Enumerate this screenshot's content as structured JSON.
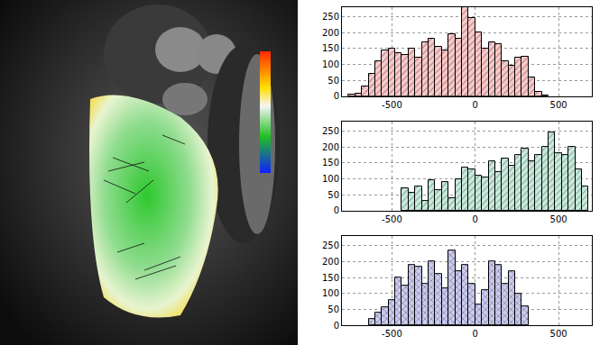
{
  "chart_data": [
    {
      "type": "histogram",
      "color": "#f3cccc",
      "grid": true,
      "bins": [
        -760,
        -720,
        -680,
        -640,
        -600,
        -560,
        -520,
        -480,
        -440,
        -400,
        -360,
        -320,
        -280,
        -240,
        -200,
        -160,
        -120,
        -80,
        -40,
        0,
        40,
        80,
        120,
        160,
        200,
        240,
        280,
        320,
        360,
        400,
        440
      ],
      "values": [
        5,
        8,
        30,
        70,
        110,
        145,
        150,
        135,
        130,
        150,
        120,
        170,
        180,
        155,
        145,
        195,
        180,
        280,
        245,
        200,
        150,
        170,
        165,
        110,
        95,
        120,
        125,
        60,
        15,
        3
      ],
      "xlim": [
        -800,
        700
      ],
      "xticks": [
        -500,
        0,
        500
      ],
      "ylim": [
        0,
        280
      ],
      "yticks": [
        0,
        50,
        100,
        150,
        200,
        250
      ]
    },
    {
      "type": "histogram",
      "color": "#cce8dd",
      "grid": true,
      "bins": [
        -440,
        -400,
        -360,
        -320,
        -280,
        -240,
        -200,
        -160,
        -120,
        -80,
        -40,
        0,
        40,
        80,
        120,
        160,
        200,
        240,
        280,
        320,
        360,
        400,
        440,
        480,
        520,
        560,
        600,
        640,
        680
      ],
      "values": [
        70,
        55,
        75,
        30,
        95,
        65,
        90,
        40,
        100,
        135,
        130,
        110,
        105,
        155,
        120,
        165,
        140,
        175,
        195,
        155,
        175,
        200,
        245,
        180,
        175,
        200,
        130,
        75
      ],
      "xlim": [
        -800,
        700
      ],
      "xticks": [
        -500,
        0,
        500
      ],
      "ylim": [
        0,
        280
      ],
      "yticks": [
        0,
        50,
        100,
        150,
        200,
        250
      ]
    },
    {
      "type": "histogram",
      "color": "#cccce8",
      "grid": true,
      "bins": [
        -640,
        -600,
        -560,
        -520,
        -480,
        -440,
        -400,
        -360,
        -320,
        -280,
        -240,
        -200,
        -160,
        -120,
        -80,
        -40,
        0,
        40,
        80,
        120,
        160,
        200,
        240,
        280,
        320
      ],
      "values": [
        20,
        40,
        55,
        80,
        150,
        125,
        190,
        185,
        130,
        200,
        160,
        115,
        235,
        170,
        190,
        130,
        65,
        110,
        200,
        190,
        130,
        170,
        100,
        60
      ],
      "xlim": [
        -800,
        700
      ],
      "xticks": [
        -500,
        0,
        500
      ],
      "ylim": [
        0,
        280
      ],
      "yticks": [
        0,
        50,
        100,
        150,
        200,
        250
      ]
    }
  ]
}
